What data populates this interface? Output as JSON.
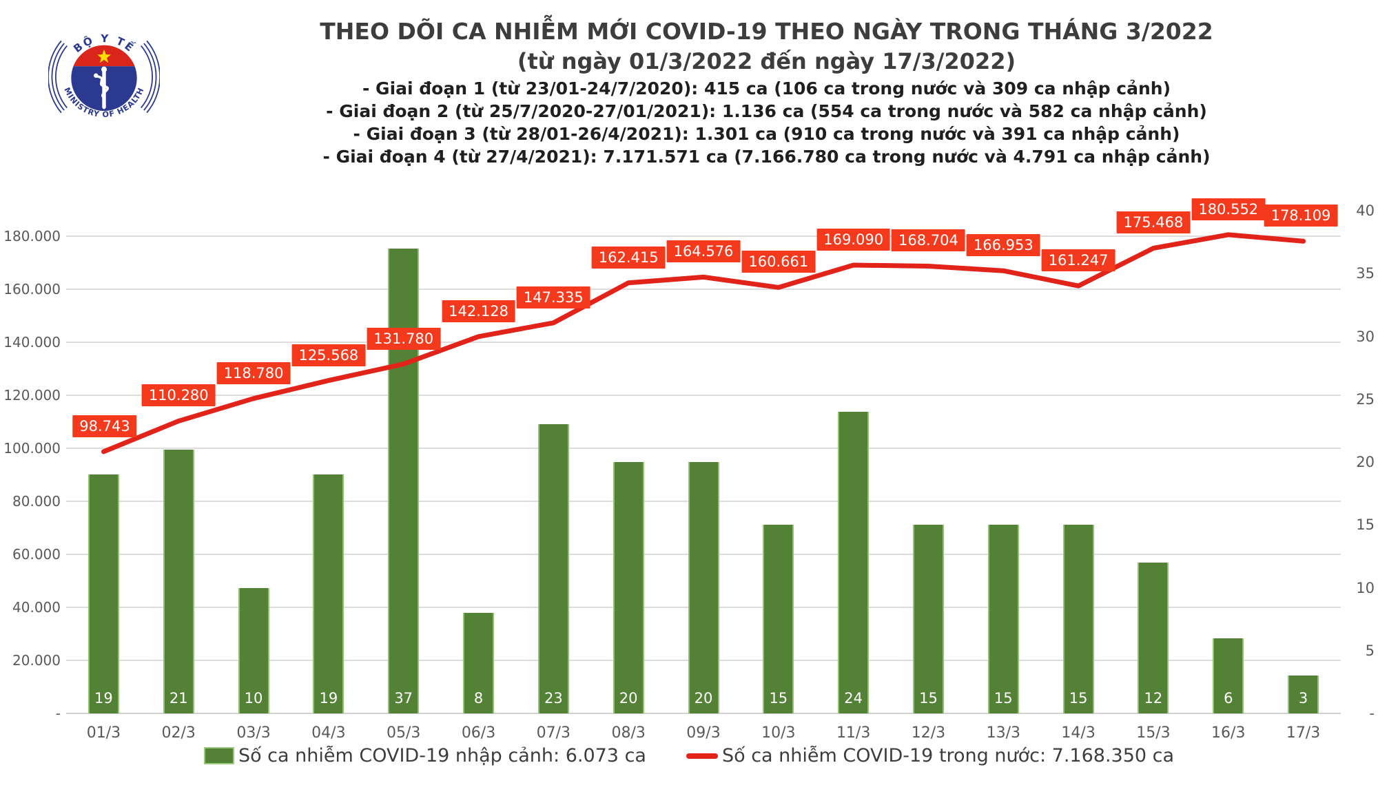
{
  "logo": {
    "top_text": "BỘ Y TẾ",
    "bottom_text": "MINISTRY OF HEALTH"
  },
  "title": {
    "line1": "THEO DÕI CA NHIỄM MỚI COVID-19 THEO NGÀY TRONG THÁNG 3/2022",
    "line2": "(từ ngày 01/3/2022 đến ngày 17/3/2022)"
  },
  "annotations": {
    "items": [
      "- Giai đoạn 1 (từ 23/01-24/7/2020): 415 ca (106 ca trong nước và 309 ca nhập cảnh)",
      "- Giai đoạn 2 (từ 25/7/2020-27/01/2021): 1.136 ca (554 ca trong nước và 582 ca nhập cảnh)",
      "- Giai đoạn 3 (từ 28/01-26/4/2021): 1.301 ca (910 ca trong nước và 391 ca nhập cảnh)",
      "- Giai đoạn 4 (từ 27/4/2021): 7.171.571 ca (7.166.780 ca trong nước và 4.791 ca nhập cảnh)"
    ]
  },
  "chart_data": {
    "type": "bar",
    "title": "THEO DÕI CA NHIỄM MỚI COVID-19 THEO NGÀY TRONG THÁNG 3/2022 (từ ngày 01/3/2022 đến ngày 17/3/2022)",
    "categories": [
      "01/3",
      "02/3",
      "03/3",
      "04/3",
      "05/3",
      "06/3",
      "07/3",
      "08/3",
      "09/3",
      "10/3",
      "11/3",
      "12/3",
      "13/3",
      "14/3",
      "15/3",
      "16/3",
      "17/3"
    ],
    "series": [
      {
        "name": "Số ca nhiễm COVID-19 nhập cảnh",
        "type": "bar",
        "axis": "right",
        "color": "#538135",
        "values": [
          19,
          21,
          10,
          19,
          37,
          8,
          23,
          20,
          20,
          15,
          24,
          15,
          15,
          15,
          12,
          6,
          3
        ],
        "value_labels": [
          "19",
          "21",
          "10",
          "19",
          "37",
          "8",
          "23",
          "20",
          "20",
          "15",
          "24",
          "15",
          "15",
          "15",
          "12",
          "6",
          "3"
        ]
      },
      {
        "name": "Số ca nhiễm COVID-19 trong nước",
        "type": "line",
        "axis": "left",
        "color": "#e2231a",
        "values": [
          98743,
          110280,
          118780,
          125568,
          131780,
          142128,
          147335,
          162415,
          164576,
          160661,
          169090,
          168704,
          166953,
          161247,
          175468,
          180552,
          178109
        ],
        "value_labels": [
          "98.743",
          "110.280",
          "118.780",
          "125.568",
          "131.780",
          "142.128",
          "147.335",
          "162.415",
          "164.576",
          "160.661",
          "169.090",
          "168.704",
          "166.953",
          "161.247",
          "175.468",
          "180.552",
          "178.109"
        ]
      }
    ],
    "label_box_color": "#f4391c",
    "grid": true,
    "legend_position": "bottom",
    "left_axis": {
      "min": 0,
      "max": 180000,
      "tick_interval": 20000,
      "tick_labels": [
        "180.000",
        "160.000",
        "140.000",
        "120.000",
        "100.000",
        "80.000",
        "60.000",
        "40.000",
        "20.000",
        "-"
      ]
    },
    "right_axis": {
      "min": 0,
      "max": 40,
      "tick_interval": 5,
      "tick_labels": [
        "40",
        "35",
        "30",
        "25",
        "20",
        "15",
        "10",
        "5",
        "-"
      ]
    }
  },
  "legend": {
    "items": [
      {
        "label": "Số ca nhiễm COVID-19 nhập cảnh: 6.073 ca",
        "swatch": "bar",
        "color": "#538135"
      },
      {
        "label": "Số ca nhiễm COVID-19 trong nước: 7.168.350 ca",
        "swatch": "line",
        "color": "#e2231a"
      }
    ]
  }
}
